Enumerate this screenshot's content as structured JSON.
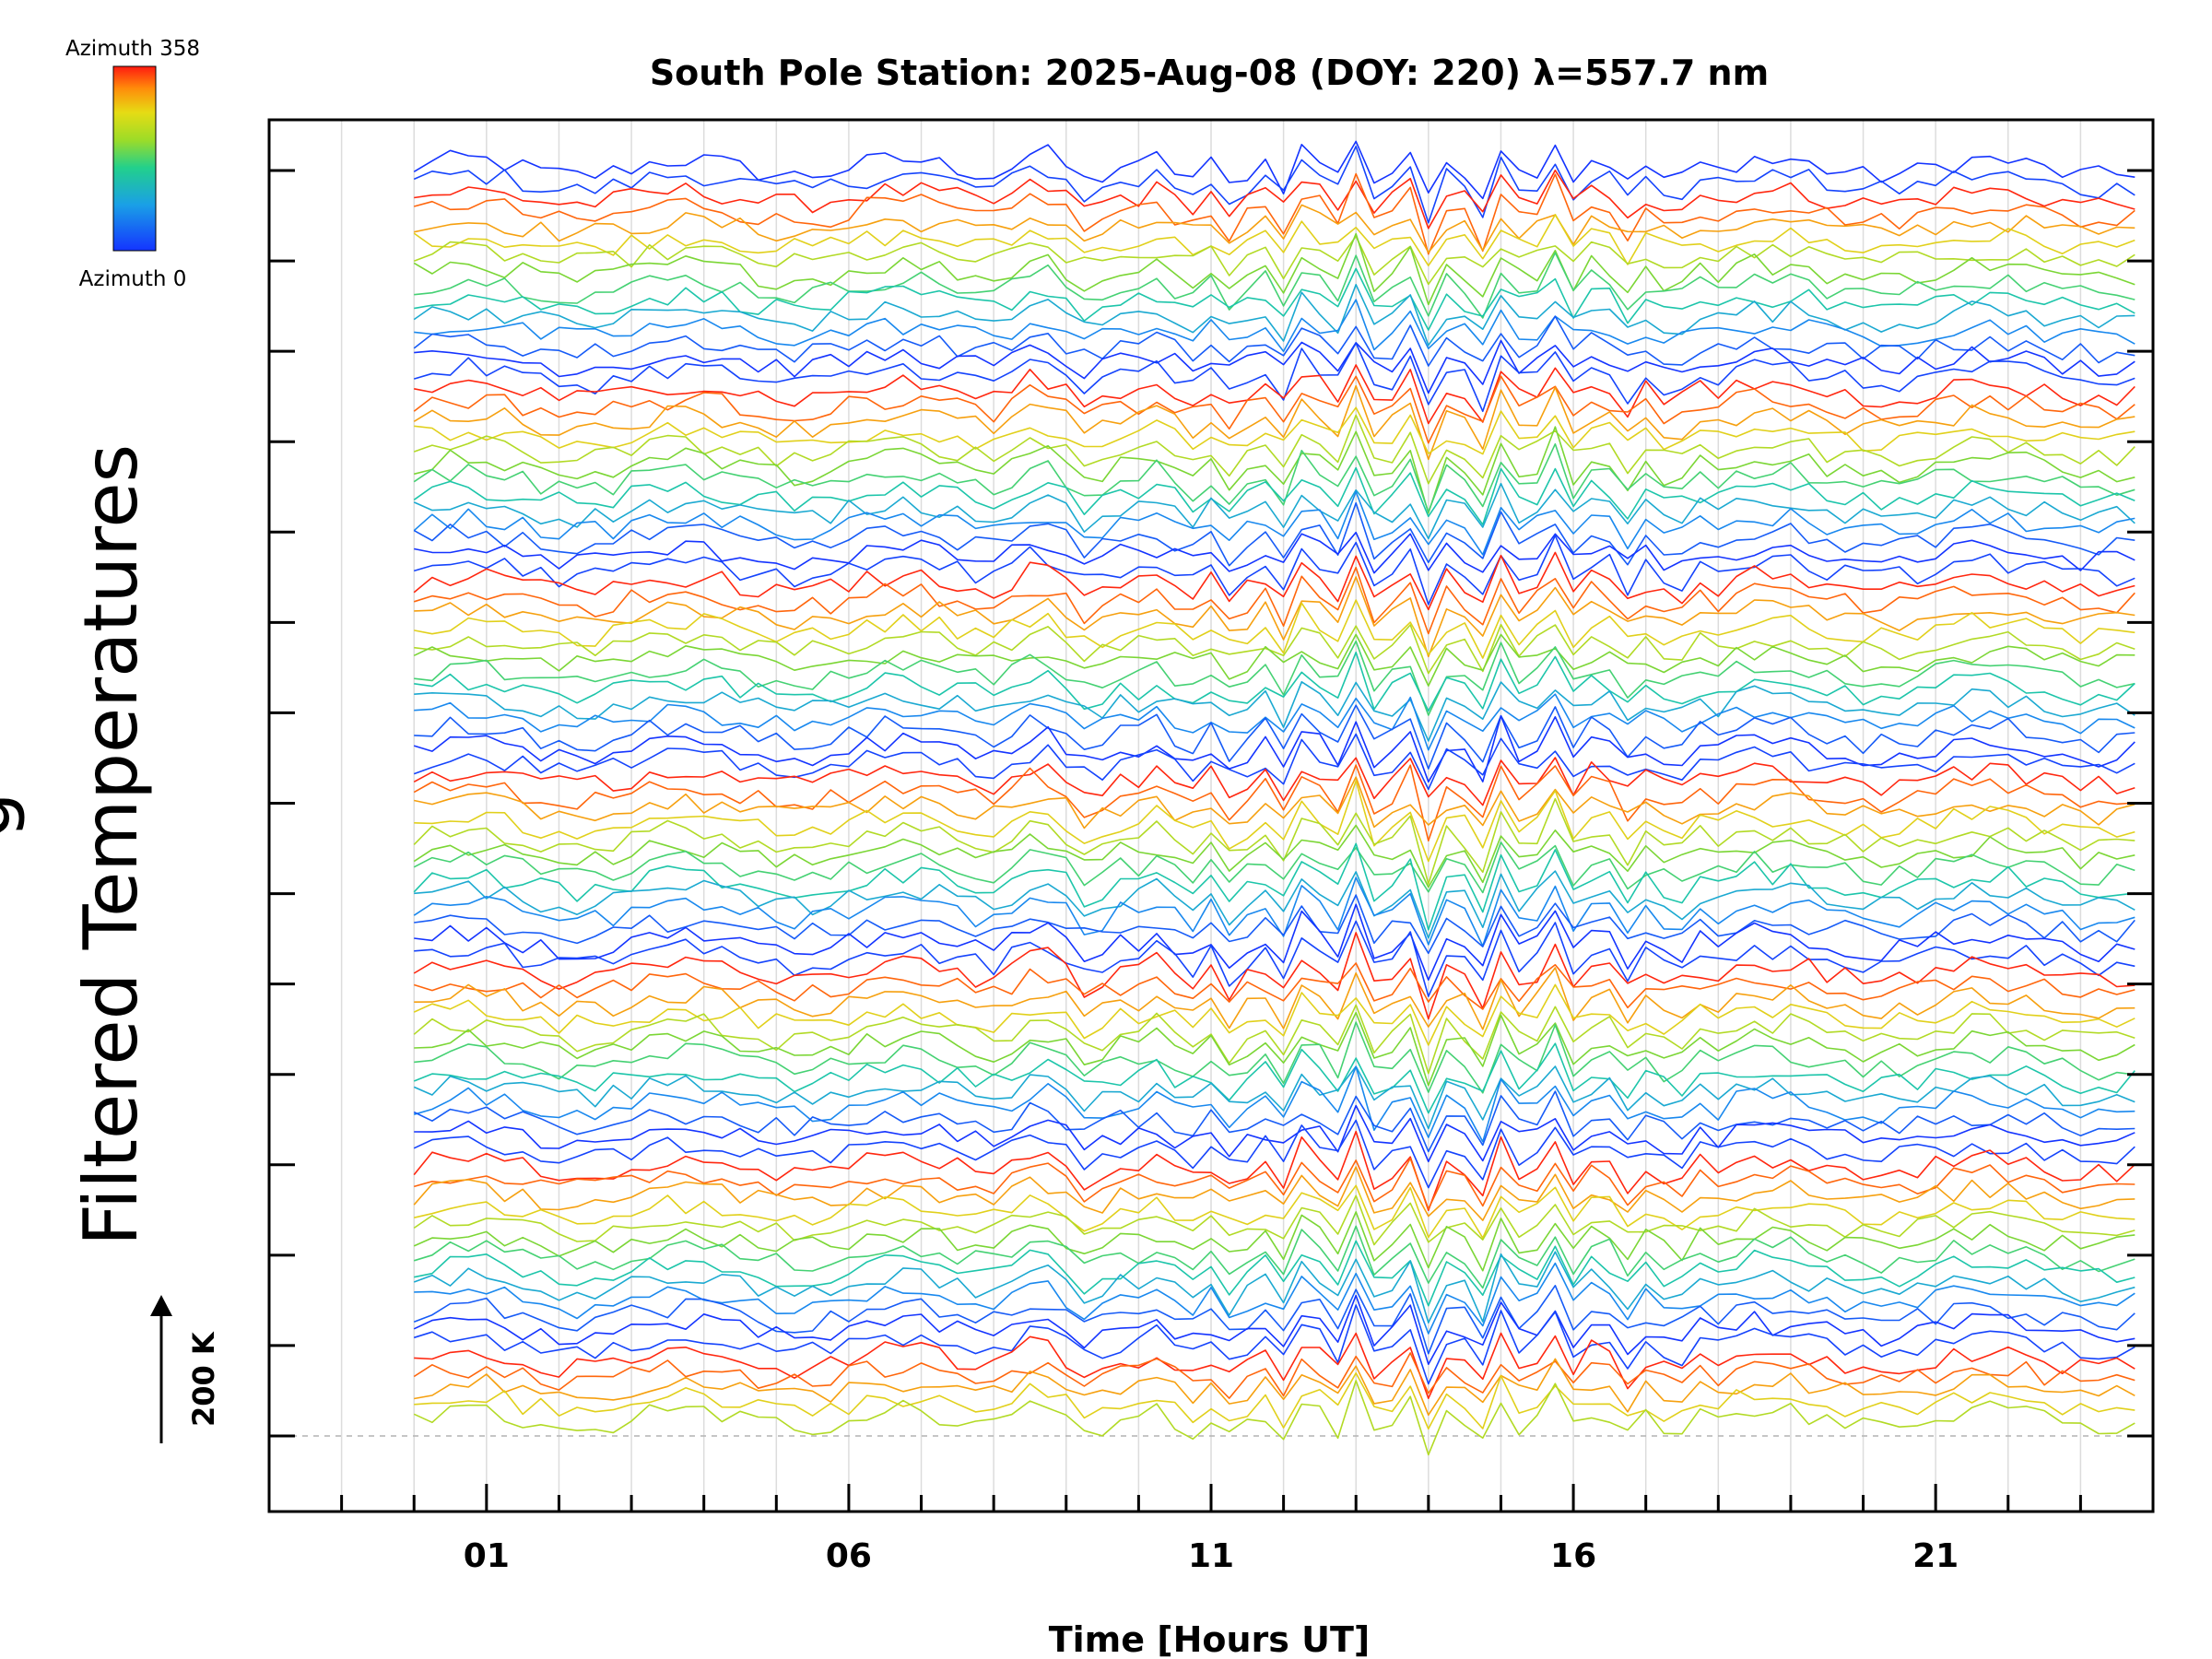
{
  "chart_data": {
    "type": "line",
    "title": "South Pole Station: 2025-Aug-08 (DOY: 220) λ=557.7 nm",
    "xlabel": "Time [Hours UT]",
    "ylabel": "Filtered Temperatures",
    "ylabel_cut": "g",
    "x_tick_labels": [
      "01",
      "06",
      "11",
      "16",
      "21"
    ],
    "x_tick_values": [
      1,
      6,
      11,
      16,
      21
    ],
    "xlim": [
      -2,
      24
    ],
    "x_start": 0,
    "x_end": 23.8,
    "scale_bar": {
      "label": "200 K",
      "value_k": 200
    },
    "colorbar": {
      "max_label": "Azimuth 358",
      "min_label": "Azimuth 0",
      "min": 0,
      "max": 358
    },
    "grid": true,
    "num_series": 85,
    "num_groups": 7,
    "colors": {
      "low": "#0a35e6",
      "mid": "#7fd630",
      "high": "#ff1a10",
      "grid": "#dcdcdc",
      "baseline": "#b4b4b4"
    }
  }
}
